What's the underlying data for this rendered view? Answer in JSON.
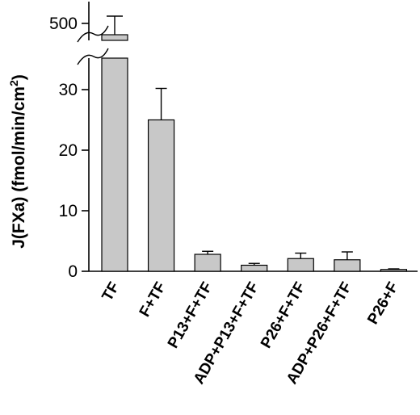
{
  "chart_data": {
    "type": "bar",
    "categories": [
      "TF",
      "F+TF",
      "P13+F+TF",
      "ADP+P13+F+TF",
      "P26+F+TF",
      "ADP+P26+F+TF",
      "P26+F"
    ],
    "values": [
      500,
      25,
      2.8,
      1.0,
      2.1,
      1.9,
      0.3
    ],
    "errors": [
      15,
      5.2,
      0.5,
      0.3,
      0.9,
      1.3,
      0.1
    ],
    "ylabel": "J(FXa) (fmol/min/cm",
    "ylabel_superscript": "2",
    "ylabel_close": ")",
    "ylim": [
      0,
      38
    ],
    "y_ticks": [
      "0",
      "10",
      "20",
      "30"
    ],
    "y_break": {
      "upper_tick": "500",
      "upper_value": 500
    },
    "bar_color": "#c8c8c8"
  }
}
